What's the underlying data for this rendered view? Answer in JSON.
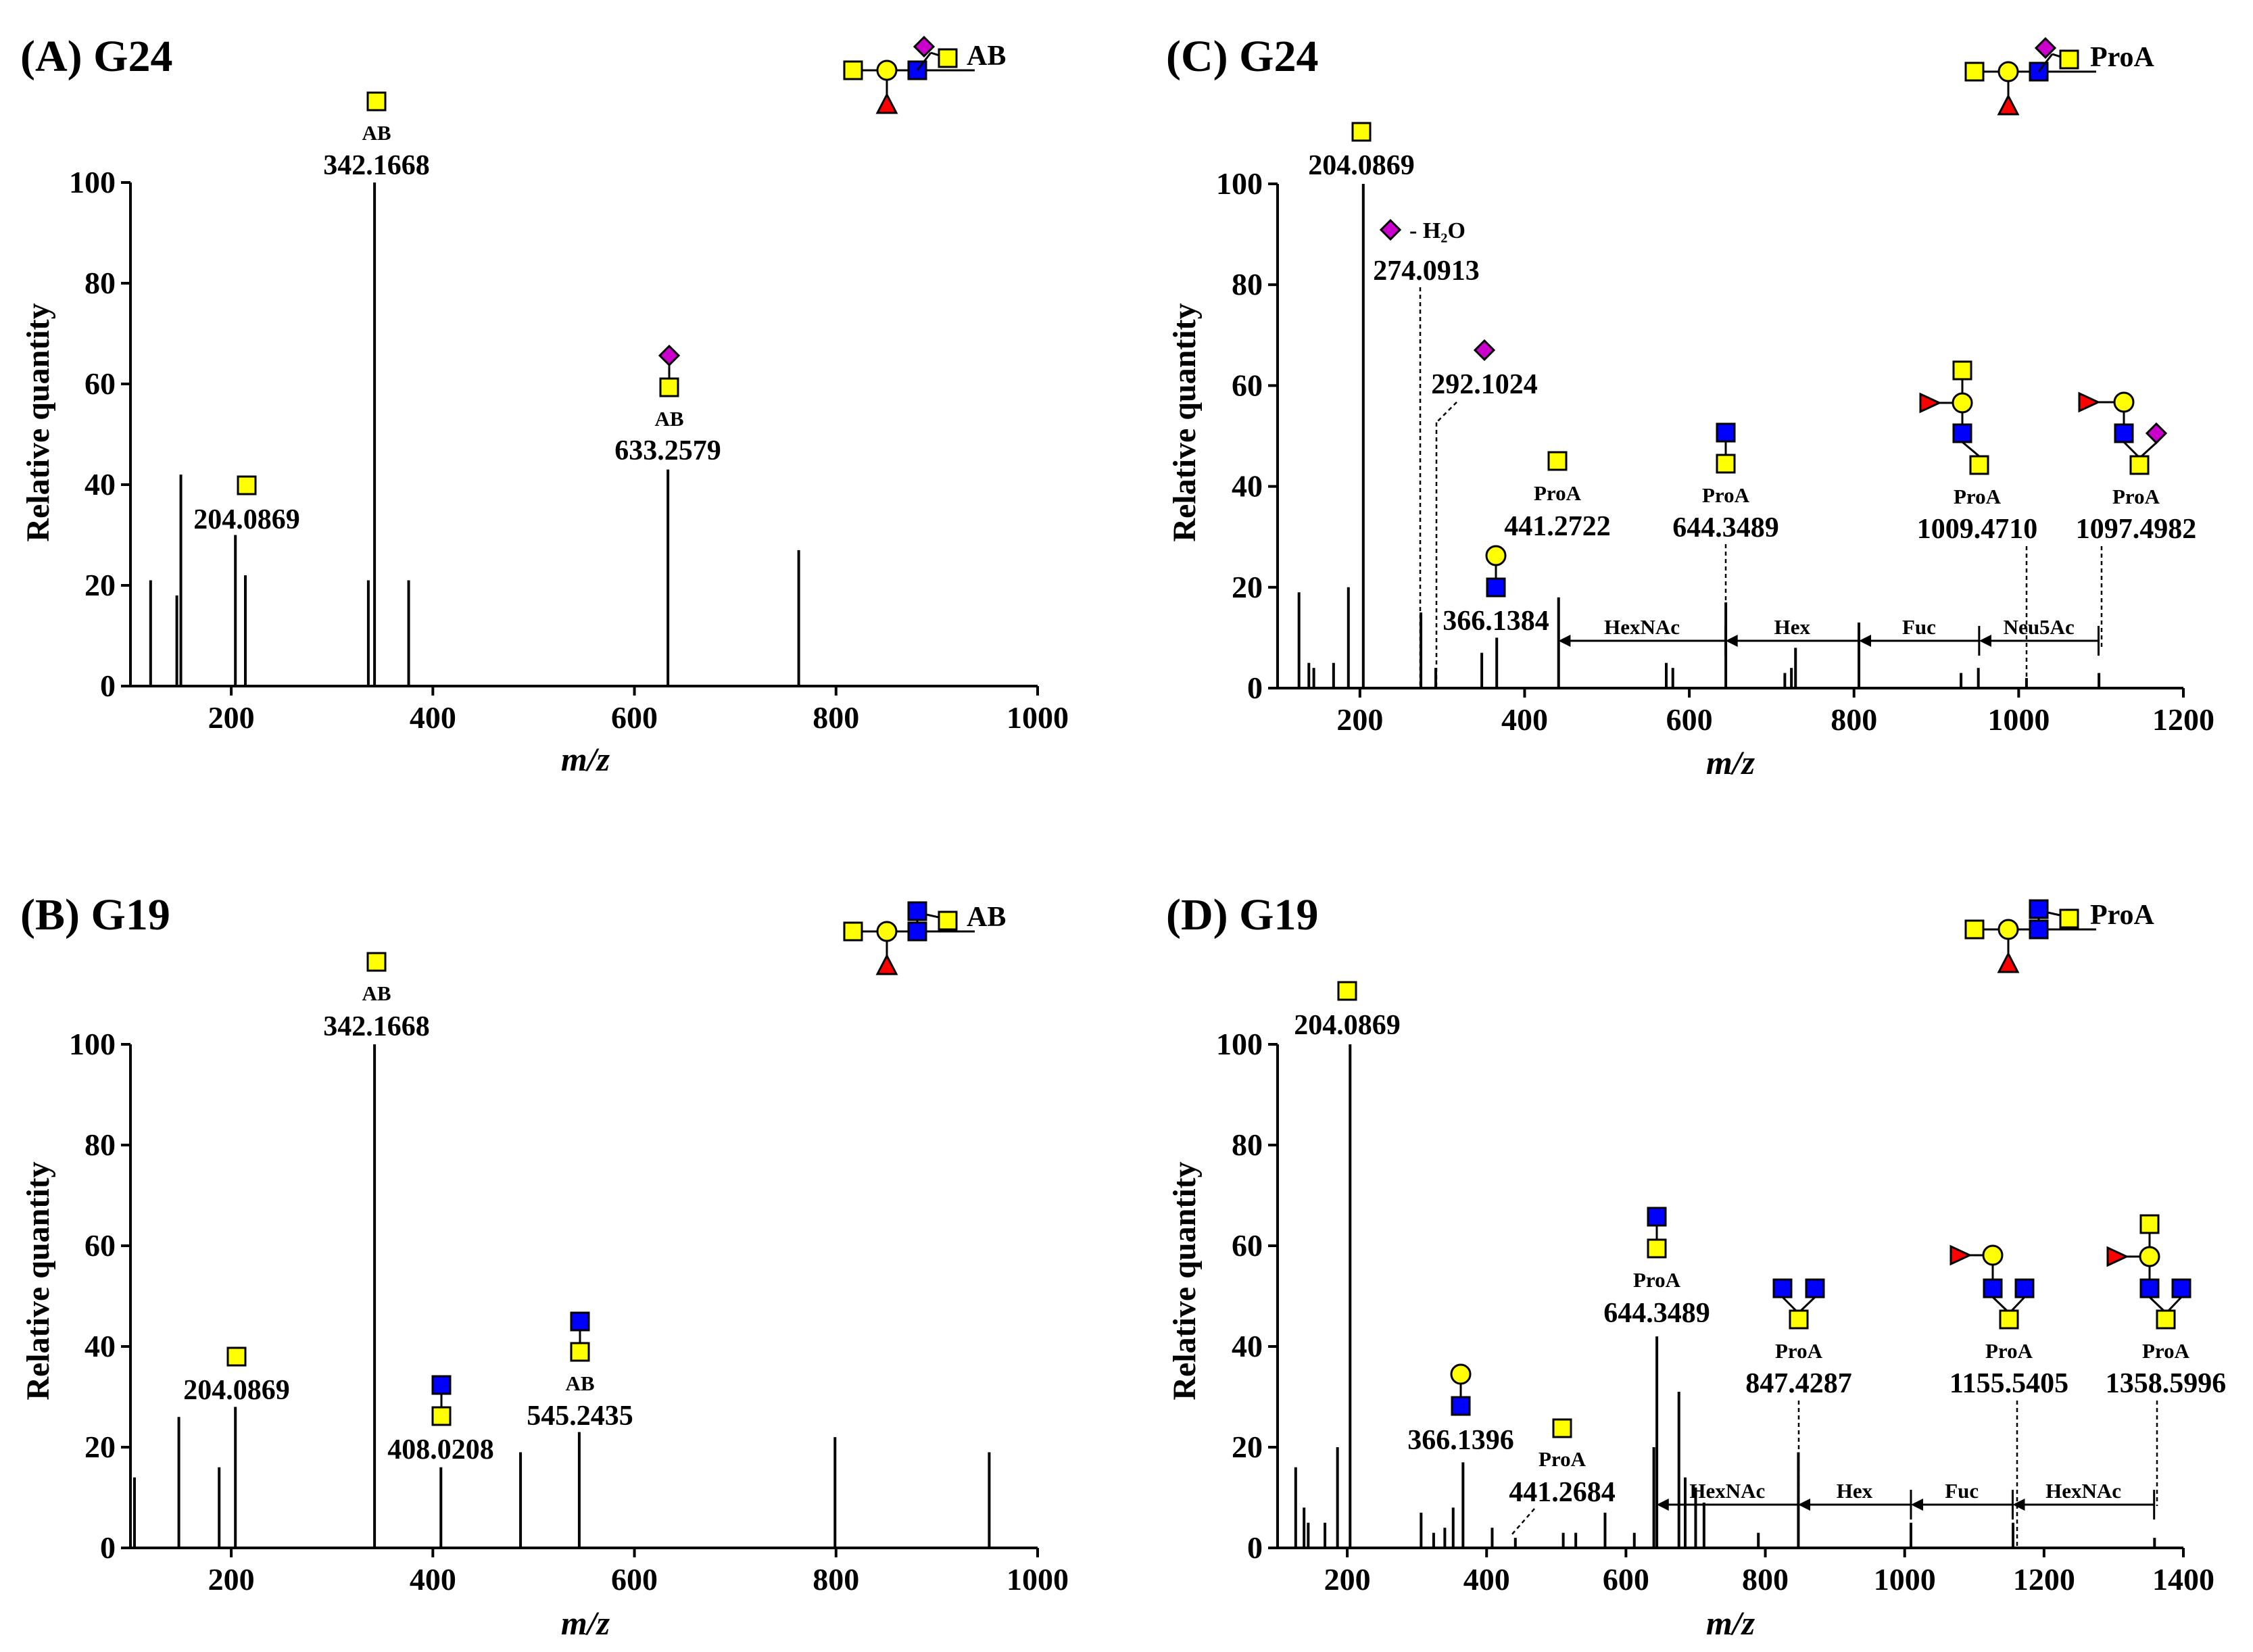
{
  "colors": {
    "galnac": "#ffff00",
    "gal": "#ffff00",
    "glcnac": "#0000ff",
    "fuc": "#ff0000",
    "neu5ac": "#cc00cc",
    "line": "#000000"
  },
  "chart_data": [
    {
      "id": "A",
      "type": "bar",
      "title": "(A) G24",
      "xlabel": "m/z",
      "ylabel": "Relative quantity",
      "xlim": [
        100,
        1000
      ],
      "ylim": [
        0,
        100
      ],
      "xticks": [
        "200",
        "400",
        "600",
        "800",
        "1000"
      ],
      "yticks": [
        "0",
        "20",
        "40",
        "60",
        "80",
        "100"
      ],
      "peaks": [
        [
          120,
          21
        ],
        [
          146,
          18
        ],
        [
          150,
          42
        ],
        [
          204.0869,
          30
        ],
        [
          214,
          22
        ],
        [
          336,
          21
        ],
        [
          342.1668,
          100
        ],
        [
          376,
          21
        ],
        [
          633.2579,
          43
        ],
        [
          763,
          27
        ]
      ],
      "structure_label": "AB",
      "annotations": [
        {
          "mz": 342.1668,
          "label": "342.1668",
          "sub": "AB",
          "glyph": "S"
        },
        {
          "mz": 204.0869,
          "label": "204.0869",
          "sub": "",
          "glyph": "S"
        },
        {
          "mz": 633.2579,
          "label": "633.2579",
          "sub": "AB",
          "glyph": "SN"
        }
      ]
    },
    {
      "id": "B",
      "type": "bar",
      "title": "(B) G19",
      "xlabel": "m/z",
      "ylabel": "Relative quantity",
      "xlim": [
        100,
        1000
      ],
      "ylim": [
        0,
        100
      ],
      "xticks": [
        "200",
        "400",
        "600",
        "800",
        "1000"
      ],
      "yticks": [
        "0",
        "20",
        "40",
        "60",
        "80",
        "100"
      ],
      "peaks": [
        [
          104,
          14
        ],
        [
          148,
          26
        ],
        [
          188,
          16
        ],
        [
          204.0869,
          28
        ],
        [
          342.1668,
          100
        ],
        [
          408.0208,
          16
        ],
        [
          487,
          19
        ],
        [
          545.2435,
          23
        ],
        [
          799,
          22
        ],
        [
          952,
          19
        ]
      ],
      "structure_label": "AB",
      "annotations": [
        {
          "mz": 342.1668,
          "label": "342.1668",
          "sub": "AB",
          "glyph": "S"
        },
        {
          "mz": 204.0869,
          "label": "204.0869",
          "sub": "",
          "glyph": "S"
        },
        {
          "mz": 408.0208,
          "label": "408.0208",
          "sub": "",
          "glyph": "SB"
        },
        {
          "mz": 545.2435,
          "label": "545.2435",
          "sub": "AB",
          "glyph": "SB"
        }
      ]
    },
    {
      "id": "C",
      "type": "bar",
      "title": "(C) G24",
      "xlabel": "m/z",
      "ylabel": "Relative quantity",
      "xlim": [
        100,
        1200
      ],
      "ylim": [
        0,
        100
      ],
      "xticks": [
        "200",
        "400",
        "600",
        "800",
        "1000",
        "1200"
      ],
      "yticks": [
        "0",
        "20",
        "40",
        "60",
        "80",
        "100"
      ],
      "peaks": [
        [
          126,
          19
        ],
        [
          138,
          5
        ],
        [
          144,
          4
        ],
        [
          168,
          5
        ],
        [
          186,
          20
        ],
        [
          204.0869,
          100
        ],
        [
          274.0913,
          15
        ],
        [
          292.1024,
          4
        ],
        [
          348,
          7
        ],
        [
          366.1384,
          10
        ],
        [
          441.2722,
          18
        ],
        [
          572,
          5
        ],
        [
          580,
          4
        ],
        [
          644.3489,
          17
        ],
        [
          716,
          3
        ],
        [
          724,
          4
        ],
        [
          729,
          8
        ],
        [
          806,
          13
        ],
        [
          930,
          3
        ],
        [
          951,
          4
        ],
        [
          1009.471,
          2
        ],
        [
          1097.4982,
          3
        ]
      ],
      "structure_label": "ProA",
      "annotations": [
        {
          "mz": 204.0869,
          "label": "204.0869",
          "sub": "",
          "glyph": "S"
        },
        {
          "mz": 274.0913,
          "label": "274.0913",
          "sub": "- H₂O",
          "glyph": "N"
        },
        {
          "mz": 292.1024,
          "label": "292.1024",
          "sub": "",
          "glyph": "N"
        },
        {
          "mz": 366.1384,
          "label": "366.1384",
          "sub": "",
          "glyph": "BC"
        },
        {
          "mz": 441.2722,
          "label": "441.2722",
          "sub": "ProA",
          "glyph": "S"
        },
        {
          "mz": 644.3489,
          "label": "644.3489",
          "sub": "ProA",
          "glyph": "SB"
        },
        {
          "mz": 1009.471,
          "label": "1009.4710",
          "sub": "ProA",
          "glyph": "SBCFS"
        },
        {
          "mz": 1097.4982,
          "label": "1097.4982",
          "sub": "ProA",
          "glyph": "SBNCF"
        }
      ],
      "segments": [
        {
          "label": "HexNAc",
          "from": 441,
          "to": 644
        },
        {
          "label": "Hex",
          "from": 644,
          "to": 806
        },
        {
          "label": "Fuc",
          "from": 806,
          "to": 952
        },
        {
          "label": "Neu5Ac",
          "from": 952,
          "to": 1097
        }
      ]
    },
    {
      "id": "D",
      "type": "bar",
      "title": "(D) G19",
      "xlabel": "m/z",
      "ylabel": "Relative quantity",
      "xlim": [
        100,
        1400
      ],
      "ylim": [
        0,
        100
      ],
      "xticks": [
        "200",
        "400",
        "600",
        "800",
        "1000",
        "1200",
        "1400"
      ],
      "yticks": [
        "0",
        "20",
        "40",
        "60",
        "80",
        "100"
      ],
      "peaks": [
        [
          126,
          16
        ],
        [
          138,
          8
        ],
        [
          144,
          5
        ],
        [
          168,
          5
        ],
        [
          186,
          20
        ],
        [
          204.0869,
          100
        ],
        [
          306,
          7
        ],
        [
          324,
          3
        ],
        [
          340,
          4
        ],
        [
          352,
          8
        ],
        [
          366.1396,
          17
        ],
        [
          408,
          4
        ],
        [
          441.2684,
          2
        ],
        [
          510,
          3
        ],
        [
          528,
          3
        ],
        [
          570,
          7
        ],
        [
          612,
          3
        ],
        [
          640,
          20
        ],
        [
          644.3489,
          42
        ],
        [
          676,
          31
        ],
        [
          685,
          14
        ],
        [
          700,
          12
        ],
        [
          712,
          9
        ],
        [
          790,
          3
        ],
        [
          847.4287,
          19
        ],
        [
          1009,
          5
        ],
        [
          1155.5405,
          5
        ],
        [
          1358.5996,
          2
        ]
      ],
      "structure_label": "ProA",
      "annotations": [
        {
          "mz": 204.0869,
          "label": "204.0869",
          "sub": "",
          "glyph": "S"
        },
        {
          "mz": 366.1396,
          "label": "366.1396",
          "sub": "",
          "glyph": "BC"
        },
        {
          "mz": 441.2684,
          "label": "441.2684",
          "sub": "ProA",
          "glyph": "S"
        },
        {
          "mz": 644.3489,
          "label": "644.3489",
          "sub": "ProA",
          "glyph": "SB"
        },
        {
          "mz": 847.4287,
          "label": "847.4287",
          "sub": "ProA",
          "glyph": "SBB"
        },
        {
          "mz": 1155.5405,
          "label": "1155.5405",
          "sub": "ProA",
          "glyph": "SBBCF"
        },
        {
          "mz": 1358.5996,
          "label": "1358.5996",
          "sub": "ProA",
          "glyph": "SBBCFS"
        }
      ],
      "segments": [
        {
          "label": "HexNAc",
          "from": 644,
          "to": 847
        },
        {
          "label": "Hex",
          "from": 847,
          "to": 1009
        },
        {
          "label": "Fuc",
          "from": 1009,
          "to": 1155
        },
        {
          "label": "HexNAc",
          "from": 1155,
          "to": 1358
        }
      ]
    }
  ]
}
